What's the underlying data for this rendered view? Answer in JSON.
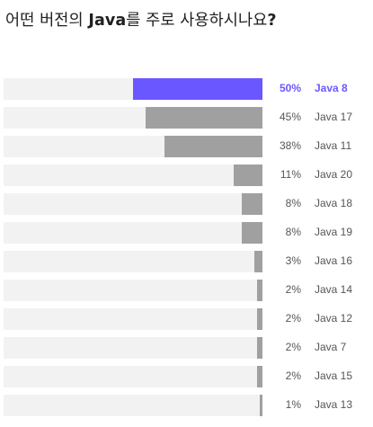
{
  "title": {
    "prefix": "어떤 버전의 ",
    "strong": "Java",
    "suffix": "를 주로 사용하시나요",
    "mark": "?"
  },
  "colors": {
    "highlight": "#6b57ff",
    "bar": "#a0a0a0",
    "track": "#f2f2f2",
    "text": "#555555"
  },
  "chart_data": {
    "type": "bar",
    "orientation": "horizontal",
    "title": "어떤 버전의 Java를 주로 사용하시나요?",
    "categories": [
      "Java 8",
      "Java 17",
      "Java 11",
      "Java 20",
      "Java 18",
      "Java 19",
      "Java 16",
      "Java 14",
      "Java 12",
      "Java 7",
      "Java 15",
      "Java 13"
    ],
    "values": [
      50,
      45,
      38,
      11,
      8,
      8,
      3,
      2,
      2,
      2,
      2,
      1
    ],
    "value_labels": [
      "50%",
      "45%",
      "38%",
      "11%",
      "8%",
      "8%",
      "3%",
      "2%",
      "2%",
      "2%",
      "2%",
      "1%"
    ],
    "xlim": [
      0,
      100
    ],
    "highlight_index": 0,
    "grid": false,
    "legend": "none"
  }
}
